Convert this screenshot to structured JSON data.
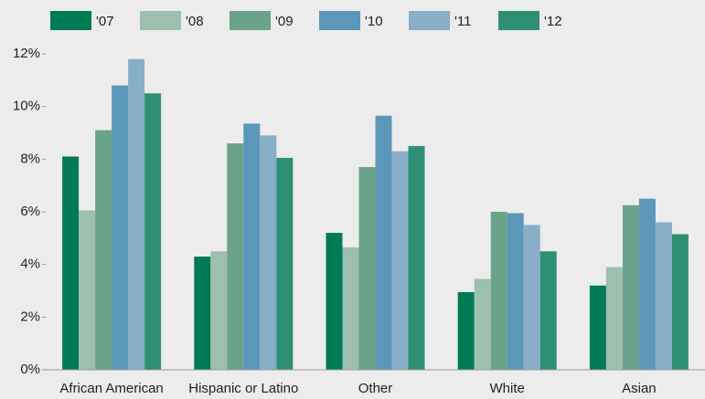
{
  "chart_data": {
    "type": "bar",
    "categories": [
      "African American",
      "Hispanic or Latino",
      "Other",
      "White",
      "Asian"
    ],
    "series": [
      {
        "name": "'07",
        "color": "#007a55",
        "values": [
          8.1,
          4.3,
          5.2,
          2.95,
          3.2
        ]
      },
      {
        "name": "'08",
        "color": "#9dbfae",
        "values": [
          6.05,
          4.5,
          4.65,
          3.45,
          3.9
        ]
      },
      {
        "name": "'09",
        "color": "#6aa38a",
        "values": [
          9.1,
          8.6,
          7.7,
          6.0,
          6.25
        ]
      },
      {
        "name": "'10",
        "color": "#5a97b8",
        "values": [
          10.8,
          9.35,
          9.65,
          5.95,
          6.5
        ]
      },
      {
        "name": "'11",
        "color": "#88aec8",
        "values": [
          11.8,
          8.9,
          8.3,
          5.5,
          5.6
        ]
      },
      {
        "name": "'12",
        "color": "#2e8f74",
        "values": [
          10.5,
          8.05,
          8.5,
          4.5,
          5.15
        ]
      }
    ],
    "ylim": [
      0,
      12
    ],
    "yticks": [
      {
        "value": 0,
        "label": "0%"
      },
      {
        "value": 2,
        "label": "2%"
      },
      {
        "value": 4,
        "label": "4%"
      },
      {
        "value": 6,
        "label": "6%"
      },
      {
        "value": 8,
        "label": "8%"
      },
      {
        "value": 10,
        "label": "10%"
      },
      {
        "value": 12,
        "label": "12%"
      }
    ],
    "grid": false
  }
}
